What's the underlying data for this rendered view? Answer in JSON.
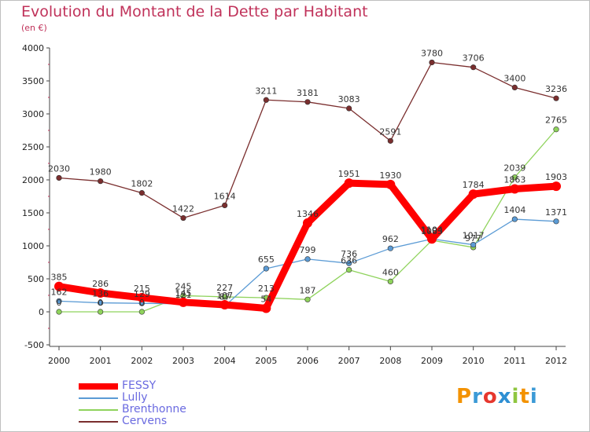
{
  "title": "Evolution du Montant de la Dette par Habitant",
  "subtitle": "(en €)",
  "brand": "Proxiti",
  "chart_data": {
    "type": "line",
    "x": [
      "2000",
      "2001",
      "2002",
      "2003",
      "2004",
      "2005",
      "2006",
      "2007",
      "2008",
      "2009",
      "2010",
      "2011",
      "2012"
    ],
    "ylim": [
      -500,
      4000
    ],
    "yticks": [
      "-500",
      "0",
      "500",
      "1000",
      "1500",
      "2000",
      "2500",
      "3000",
      "3500",
      "4000"
    ],
    "legend_position": "bottom-left",
    "series": [
      {
        "name": "FESSY",
        "color": "#ff0000",
        "values": [
          385,
          286,
          215,
          145,
          107,
          54,
          1346,
          1951,
          1930,
          1104,
          1784,
          1863,
          1903
        ]
      },
      {
        "name": "Lully",
        "color": "#5b9bd5",
        "values": [
          162,
          136,
          129,
          121,
          87,
          655,
          799,
          736,
          962,
          1104,
          1017,
          1404,
          1371
        ]
      },
      {
        "name": "Brenthonne",
        "color": "#8fd35c",
        "values": [
          0,
          0,
          0,
          245,
          227,
          213,
          187,
          636,
          460,
          1083,
          977,
          2039,
          2765
        ]
      },
      {
        "name": "Cervens",
        "color": "#7a2e2e",
        "values": [
          2030,
          1980,
          1802,
          1422,
          1614,
          3211,
          3181,
          3083,
          2591,
          3780,
          3706,
          3400,
          3236
        ]
      }
    ]
  }
}
